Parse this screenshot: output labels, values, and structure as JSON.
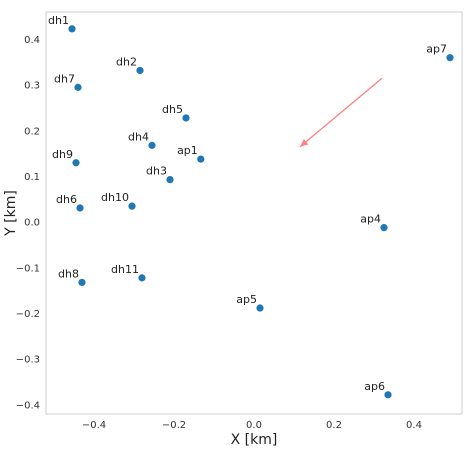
{
  "chart_data": {
    "type": "scatter",
    "xlabel": "X [km]",
    "ylabel": "Y [km]",
    "xlim": [
      -0.52,
      0.52
    ],
    "ylim": [
      -0.42,
      0.46
    ],
    "xticks": [
      -0.4,
      -0.2,
      0.0,
      0.2,
      0.4
    ],
    "xtick_labels": [
      "−0.4",
      "−0.2",
      "0.0",
      "0.2",
      "0.4"
    ],
    "yticks": [
      -0.4,
      -0.3,
      -0.2,
      -0.1,
      0.0,
      0.1,
      0.2,
      0.3,
      0.4
    ],
    "ytick_labels": [
      "−0.4",
      "−0.3",
      "−0.2",
      "−0.1",
      "0.0",
      "0.1",
      "0.2",
      "0.3",
      "0.4"
    ],
    "grid": false,
    "marker_color": "#1f77b4",
    "arrow_color": "#ff8080",
    "points": [
      {
        "label": "dh1",
        "x": -0.455,
        "y": 0.423
      },
      {
        "label": "dh2",
        "x": -0.285,
        "y": 0.332
      },
      {
        "label": "dh7",
        "x": -0.44,
        "y": 0.295
      },
      {
        "label": "dh5",
        "x": -0.17,
        "y": 0.228
      },
      {
        "label": "dh4",
        "x": -0.255,
        "y": 0.168
      },
      {
        "label": "ap1",
        "x": -0.133,
        "y": 0.138
      },
      {
        "label": "dh9",
        "x": -0.445,
        "y": 0.13
      },
      {
        "label": "dh3",
        "x": -0.21,
        "y": 0.093
      },
      {
        "label": "dh10",
        "x": -0.305,
        "y": 0.035
      },
      {
        "label": "dh6",
        "x": -0.435,
        "y": 0.031
      },
      {
        "label": "ap4",
        "x": 0.325,
        "y": -0.012
      },
      {
        "label": "dh11",
        "x": -0.28,
        "y": -0.122
      },
      {
        "label": "dh8",
        "x": -0.43,
        "y": -0.132
      },
      {
        "label": "ap5",
        "x": 0.015,
        "y": -0.188
      },
      {
        "label": "ap7",
        "x": 0.49,
        "y": 0.36
      },
      {
        "label": "ap6",
        "x": 0.335,
        "y": -0.378
      }
    ],
    "arrow": {
      "x_start": 0.32,
      "y_start": 0.315,
      "x_end": 0.115,
      "y_end": 0.165
    }
  }
}
